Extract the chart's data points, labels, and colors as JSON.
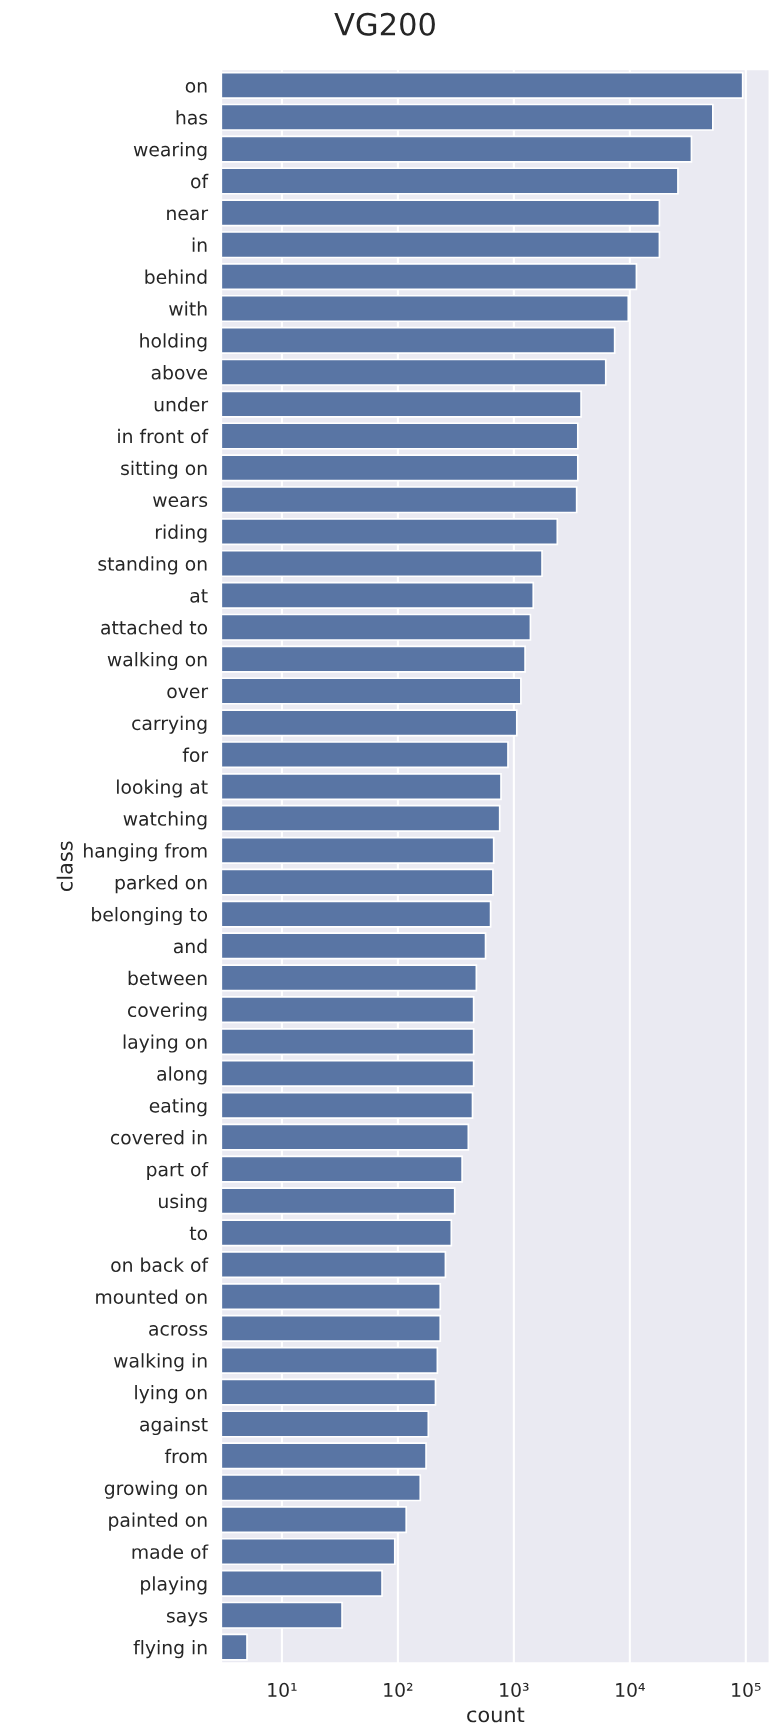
{
  "chart_data": {
    "type": "bar",
    "title": "VG200",
    "xlabel": "count",
    "ylabel": "class",
    "orientation": "horizontal",
    "log": "x",
    "grid": "x",
    "categories": [
      "on",
      "has",
      "wearing",
      "of",
      "near",
      "in",
      "behind",
      "with",
      "holding",
      "above",
      "under",
      "in front of",
      "sitting on",
      "wears",
      "riding",
      "standing on",
      "at",
      "attached to",
      "walking on",
      "over",
      "carrying",
      "for",
      "looking at",
      "watching",
      "hanging from",
      "parked on",
      "belonging to",
      "and",
      "between",
      "covering",
      "laying on",
      "along",
      "eating",
      "covered in",
      "part of",
      "using",
      "to",
      "on back of",
      "mounted on",
      "across",
      "walking in",
      "lying on",
      "against",
      "from",
      "growing on",
      "painted on",
      "made of",
      "playing",
      "says",
      "flying in"
    ],
    "values": [
      94000,
      52000,
      34000,
      26000,
      18000,
      18000,
      11400,
      9700,
      7400,
      6200,
      3800,
      3560,
      3560,
      3480,
      2370,
      1750,
      1470,
      1390,
      1250,
      1150,
      1060,
      890,
      775,
      755,
      670,
      660,
      630,
      570,
      475,
      450,
      450,
      450,
      440,
      405,
      358,
      309,
      289,
      257,
      232,
      232,
      219,
      211,
      183,
      175,
      156,
      118,
      94,
      73,
      33,
      5
    ],
    "color": "#5975a4",
    "xlim": [
      3,
      160000
    ],
    "xticks": [
      {
        "value": 10,
        "label": "10¹"
      },
      {
        "value": 100,
        "label": "10²"
      },
      {
        "value": 1000,
        "label": "10³"
      },
      {
        "value": 10000,
        "label": "10⁴"
      },
      {
        "value": 100000,
        "label": "10⁵"
      }
    ]
  }
}
